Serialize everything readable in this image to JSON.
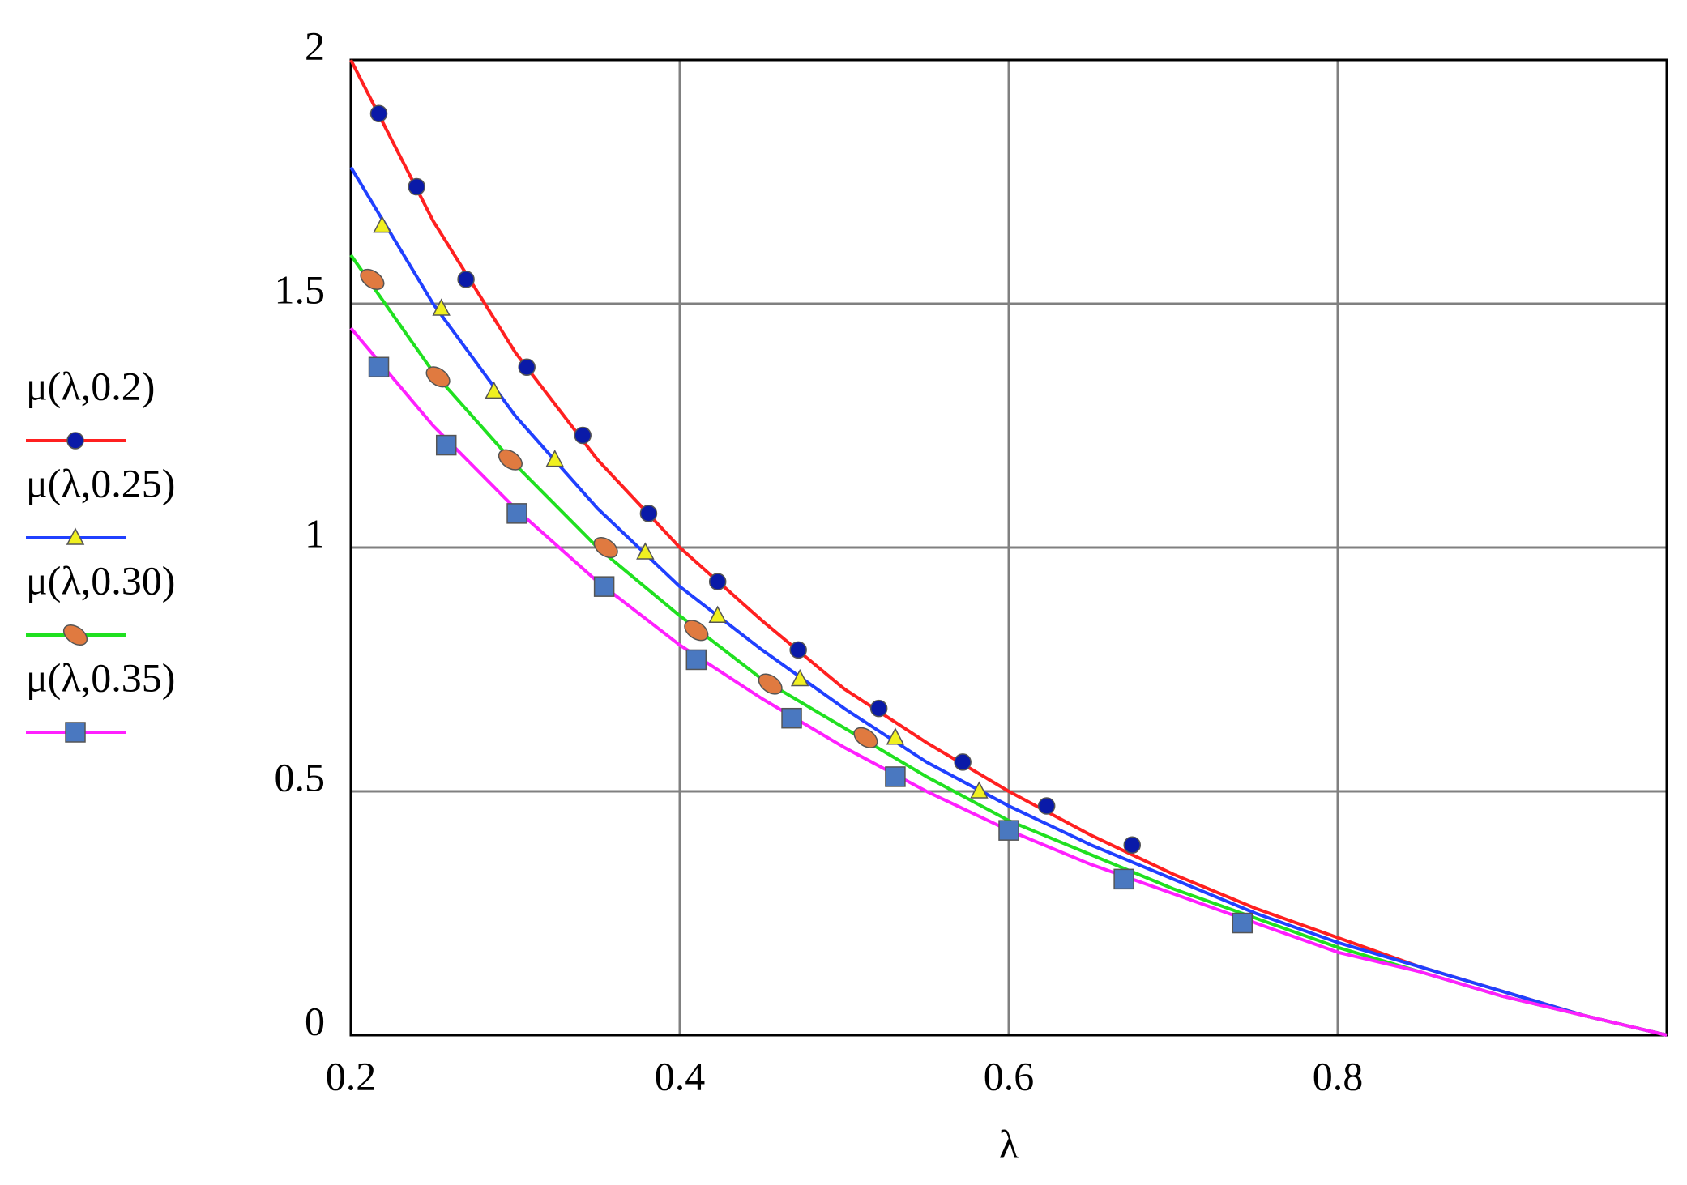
{
  "chart_data": {
    "type": "line",
    "x_label": "λ",
    "xlim": [
      0.2,
      1.0
    ],
    "xticks": [
      0.2,
      0.4,
      0.6,
      0.8
    ],
    "ylim": [
      0,
      2
    ],
    "yticks": [
      0,
      0.5,
      1,
      1.5,
      2
    ],
    "grid": true,
    "legend": "left",
    "series": [
      {
        "name": "μ(λ,0.2)",
        "color": "#ff2020",
        "marker": "circle",
        "marker_color": "#0a1aa8",
        "x": [
          0.2,
          0.25,
          0.3,
          0.35,
          0.4,
          0.45,
          0.5,
          0.55,
          0.6,
          0.65,
          0.7,
          0.75,
          0.8,
          0.85,
          0.9,
          0.95,
          1.0
        ],
        "values": [
          2.0,
          1.67,
          1.4,
          1.18,
          1.0,
          0.85,
          0.71,
          0.6,
          0.5,
          0.41,
          0.33,
          0.26,
          0.2,
          0.14,
          0.09,
          0.04,
          0
        ],
        "markers": {
          "x": [
            0.217,
            0.24,
            0.27,
            0.307,
            0.341,
            0.381,
            0.423,
            0.472,
            0.521,
            0.572,
            0.623,
            0.675
          ],
          "values": [
            1.89,
            1.74,
            1.55,
            1.37,
            1.23,
            1.07,
            0.93,
            0.79,
            0.67,
            0.56,
            0.47,
            0.39
          ]
        }
      },
      {
        "name": "μ(λ,0.25)",
        "color": "#2040ff",
        "marker": "triangle",
        "marker_color": "#f0f020",
        "x": [
          0.2,
          0.25,
          0.3,
          0.35,
          0.4,
          0.45,
          0.5,
          0.55,
          0.6,
          0.65,
          0.7,
          0.75,
          0.8,
          0.85,
          0.9,
          0.95,
          1.0
        ],
        "values": [
          1.78,
          1.5,
          1.27,
          1.08,
          0.92,
          0.79,
          0.67,
          0.56,
          0.47,
          0.39,
          0.32,
          0.25,
          0.19,
          0.14,
          0.09,
          0.04,
          0
        ],
        "markers": {
          "x": [
            0.219,
            0.255,
            0.287,
            0.324,
            0.379,
            0.423,
            0.473,
            0.531,
            0.582
          ],
          "values": [
            1.66,
            1.49,
            1.32,
            1.18,
            0.99,
            0.86,
            0.73,
            0.61,
            0.5
          ]
        }
      },
      {
        "name": "μ(λ,0.30)",
        "color": "#20e020",
        "marker": "ellipse",
        "marker_color": "#e07a40",
        "x": [
          0.2,
          0.25,
          0.3,
          0.35,
          0.4,
          0.45,
          0.5,
          0.55,
          0.6,
          0.65,
          0.7,
          0.75,
          0.8,
          0.85,
          0.9,
          0.95,
          1.0
        ],
        "values": [
          1.6,
          1.36,
          1.17,
          1.0,
          0.86,
          0.73,
          0.63,
          0.53,
          0.44,
          0.37,
          0.3,
          0.24,
          0.18,
          0.13,
          0.08,
          0.04,
          0
        ],
        "markers": {
          "x": [
            0.213,
            0.253,
            0.297,
            0.355,
            0.41,
            0.455,
            0.513
          ],
          "values": [
            1.55,
            1.35,
            1.18,
            1.0,
            0.83,
            0.72,
            0.61
          ]
        }
      },
      {
        "name": "μ(λ,0.35)",
        "color": "#ff20ff",
        "marker": "square",
        "marker_color": "#4a78c0",
        "x": [
          0.2,
          0.25,
          0.3,
          0.35,
          0.4,
          0.45,
          0.5,
          0.55,
          0.6,
          0.65,
          0.7,
          0.75,
          0.8,
          0.85,
          0.9,
          0.95,
          1.0
        ],
        "values": [
          1.45,
          1.25,
          1.08,
          0.93,
          0.8,
          0.69,
          0.59,
          0.5,
          0.42,
          0.35,
          0.29,
          0.23,
          0.17,
          0.13,
          0.08,
          0.04,
          0
        ],
        "markers": {
          "x": [
            0.217,
            0.258,
            0.301,
            0.354,
            0.41,
            0.468,
            0.531,
            0.6,
            0.67,
            0.742
          ],
          "values": [
            1.37,
            1.21,
            1.07,
            0.92,
            0.77,
            0.65,
            0.53,
            0.42,
            0.32,
            0.23
          ]
        }
      }
    ]
  }
}
